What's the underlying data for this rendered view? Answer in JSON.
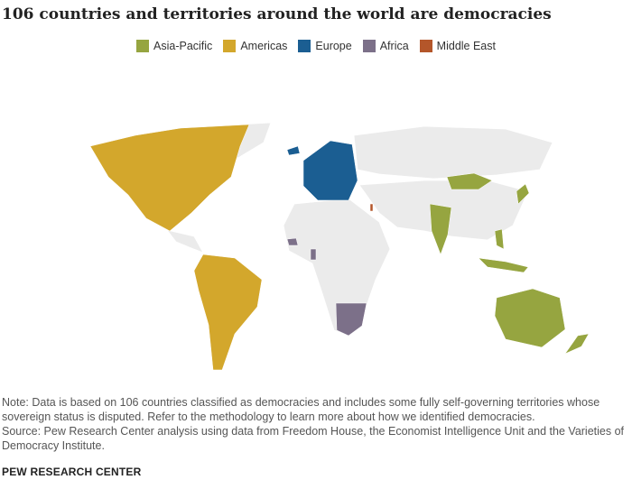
{
  "title": "106 countries and territories around the world are democracies",
  "legend": {
    "entries": [
      {
        "label": "Asia-Pacific",
        "color": "#96a540"
      },
      {
        "label": "Americas",
        "color": "#d3a72c"
      },
      {
        "label": "Europe",
        "color": "#1b5e92"
      },
      {
        "label": "Africa",
        "color": "#7c7089"
      },
      {
        "label": "Middle East",
        "color": "#b4562a"
      }
    ]
  },
  "note": "Note: Data is based on 106 countries classified as democracies and includes some fully self-governing territories whose sovereign status is disputed. Refer to the methodology to learn more about how we identified democracies.",
  "source": "Source: Pew Research Center analysis using data from Freedom House, the Economist Intelligence Unit and the Varieties of Democracy Institute.",
  "footer": "PEW RESEARCH CENTER"
}
